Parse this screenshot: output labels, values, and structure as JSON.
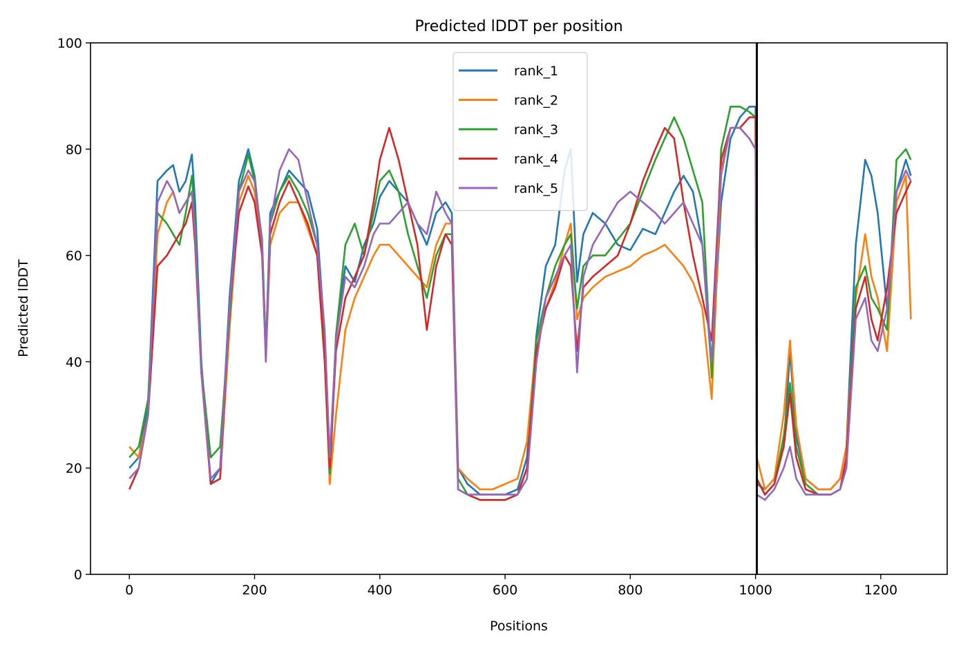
{
  "chart_data": {
    "type": "line",
    "title": "Predicted lDDT per position",
    "xlabel": "Positions",
    "ylabel": "Predicted lDDT",
    "xlim": [
      -62,
      1306
    ],
    "ylim": [
      0,
      100
    ],
    "xticks": [
      0,
      200,
      400,
      600,
      800,
      1000,
      1200
    ],
    "yticks": [
      0,
      20,
      40,
      60,
      80,
      100
    ],
    "grid": false,
    "legend_position": "upper center",
    "vline": {
      "x": 1002,
      "color": "#000000"
    },
    "x": [
      0,
      15,
      30,
      45,
      60,
      70,
      80,
      90,
      100,
      105,
      115,
      130,
      145,
      160,
      175,
      190,
      200,
      212,
      218,
      225,
      240,
      255,
      270,
      285,
      300,
      312,
      320,
      330,
      345,
      360,
      375,
      390,
      400,
      415,
      430,
      445,
      460,
      475,
      490,
      505,
      515,
      525,
      540,
      560,
      580,
      600,
      620,
      635,
      650,
      665,
      680,
      695,
      705,
      715,
      725,
      740,
      760,
      780,
      800,
      820,
      840,
      855,
      870,
      885,
      900,
      915,
      930,
      945,
      960,
      975,
      990,
      1000,
      1002,
      1015,
      1030,
      1045,
      1055,
      1065,
      1080,
      1100,
      1120,
      1135,
      1145,
      1160,
      1175,
      1185,
      1195,
      1210,
      1225,
      1240,
      1248
    ],
    "series": [
      {
        "name": "rank_1",
        "color": "#1f77b4",
        "values": [
          20,
          22,
          32,
          74,
          76,
          77,
          72,
          74,
          79,
          70,
          40,
          17,
          20,
          52,
          74,
          80,
          75,
          62,
          42,
          68,
          72,
          76,
          74,
          72,
          65,
          45,
          17,
          45,
          58,
          55,
          62,
          66,
          71,
          74,
          72,
          70,
          66,
          62,
          68,
          70,
          68,
          20,
          17,
          15,
          15,
          15,
          16,
          22,
          45,
          58,
          62,
          76,
          80,
          55,
          64,
          68,
          66,
          62,
          61,
          65,
          64,
          68,
          72,
          75,
          72,
          62,
          38,
          70,
          82,
          86,
          88,
          88,
          17,
          16,
          18,
          24,
          42,
          26,
          18,
          16,
          16,
          18,
          24,
          62,
          78,
          75,
          68,
          50,
          72,
          78,
          75
        ]
      },
      {
        "name": "rank_2",
        "color": "#ff7f0e",
        "values": [
          24,
          22,
          30,
          64,
          70,
          72,
          68,
          70,
          72,
          64,
          38,
          17,
          18,
          46,
          70,
          75,
          72,
          60,
          40,
          62,
          68,
          70,
          70,
          65,
          60,
          40,
          17,
          30,
          46,
          52,
          56,
          60,
          62,
          62,
          60,
          58,
          56,
          54,
          62,
          66,
          66,
          20,
          18,
          16,
          16,
          17,
          18,
          25,
          44,
          50,
          55,
          62,
          66,
          48,
          52,
          54,
          56,
          57,
          58,
          60,
          61,
          62,
          60,
          58,
          55,
          50,
          33,
          75,
          84,
          84,
          82,
          80,
          22,
          16,
          18,
          30,
          44,
          28,
          18,
          16,
          16,
          18,
          24,
          52,
          64,
          56,
          52,
          42,
          70,
          75,
          48
        ]
      },
      {
        "name": "rank_3",
        "color": "#2ca02c",
        "values": [
          22,
          24,
          33,
          68,
          66,
          64,
          62,
          68,
          75,
          66,
          39,
          22,
          24,
          48,
          72,
          79,
          74,
          63,
          42,
          66,
          72,
          75,
          72,
          68,
          62,
          42,
          19,
          45,
          62,
          66,
          60,
          68,
          74,
          76,
          72,
          64,
          58,
          52,
          60,
          64,
          64,
          18,
          15,
          14,
          14,
          14,
          15,
          20,
          44,
          52,
          58,
          62,
          64,
          50,
          58,
          60,
          60,
          63,
          66,
          72,
          78,
          82,
          86,
          82,
          76,
          70,
          37,
          80,
          88,
          88,
          87,
          86,
          18,
          15,
          17,
          26,
          36,
          24,
          17,
          15,
          15,
          16,
          20,
          54,
          58,
          52,
          50,
          46,
          78,
          80,
          78
        ]
      },
      {
        "name": "rank_4",
        "color": "#d62728",
        "values": [
          16,
          20,
          30,
          58,
          60,
          62,
          64,
          66,
          70,
          62,
          38,
          17,
          18,
          50,
          68,
          73,
          70,
          60,
          41,
          64,
          70,
          74,
          70,
          66,
          60,
          40,
          20,
          42,
          52,
          56,
          60,
          70,
          78,
          84,
          78,
          70,
          62,
          46,
          58,
          64,
          62,
          16,
          15,
          14,
          14,
          14,
          15,
          20,
          42,
          50,
          54,
          60,
          58,
          42,
          54,
          56,
          58,
          60,
          66,
          74,
          80,
          84,
          82,
          70,
          60,
          52,
          44,
          78,
          84,
          84,
          86,
          86,
          18,
          15,
          17,
          24,
          34,
          22,
          16,
          15,
          15,
          16,
          22,
          50,
          56,
          48,
          44,
          54,
          68,
          72,
          74
        ]
      },
      {
        "name": "rank_5",
        "color": "#9467bd",
        "values": [
          18,
          20,
          30,
          70,
          74,
          72,
          68,
          70,
          72,
          64,
          38,
          18,
          20,
          50,
          72,
          76,
          74,
          62,
          40,
          66,
          76,
          80,
          78,
          70,
          62,
          46,
          22,
          44,
          56,
          54,
          58,
          64,
          66,
          66,
          68,
          70,
          66,
          64,
          72,
          68,
          66,
          16,
          15,
          15,
          15,
          15,
          15,
          18,
          40,
          52,
          56,
          60,
          62,
          38,
          56,
          62,
          66,
          70,
          72,
          70,
          68,
          66,
          68,
          70,
          66,
          62,
          40,
          76,
          84,
          84,
          82,
          80,
          15,
          14,
          16,
          20,
          24,
          18,
          15,
          15,
          15,
          16,
          20,
          48,
          52,
          44,
          42,
          50,
          72,
          76,
          74
        ]
      }
    ]
  }
}
